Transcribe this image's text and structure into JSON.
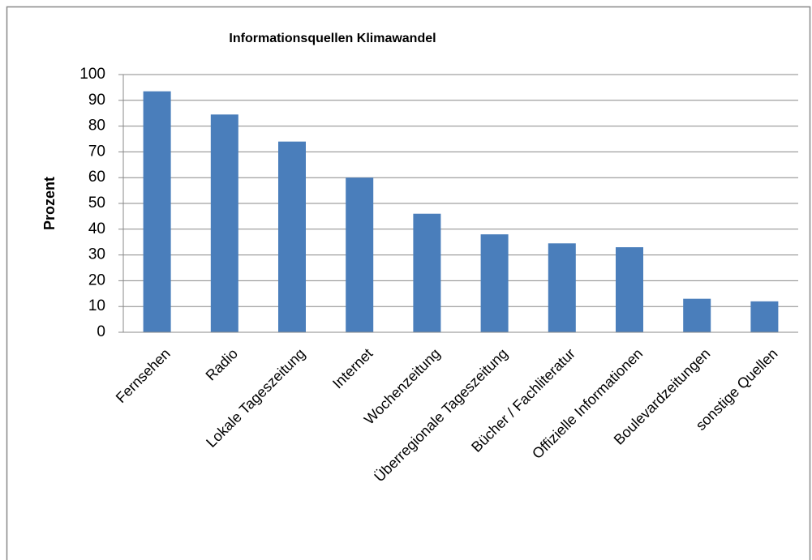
{
  "chart_data": {
    "type": "bar",
    "title": "Informationsquellen Klimawandel",
    "y_label": "Prozent",
    "categories": [
      "Fernsehen",
      "Radio",
      "Lokale Tageszeitung",
      "Internet",
      "Wochenzeitung",
      "Überregionale Tageszeitung",
      "Bücher / Fachliteratur",
      "Offizielle Informationen",
      "Boulevardzeitungen",
      "sonstige Quellen"
    ],
    "values": [
      93.5,
      84.5,
      74,
      60,
      46,
      38,
      34.5,
      33,
      13,
      12
    ],
    "color": "#4a7ebb",
    "ylim": [
      0,
      100
    ],
    "yticks": [
      0,
      10,
      20,
      30,
      40,
      50,
      60,
      70,
      80,
      90,
      100
    ],
    "grid": true
  }
}
